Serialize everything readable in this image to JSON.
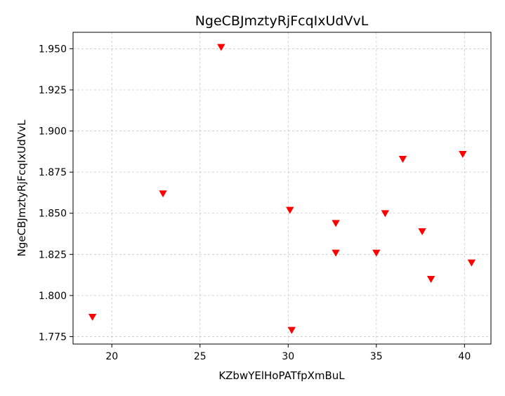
{
  "chart_data": {
    "type": "scatter",
    "title": "NgeCBJmztyRjFcqIxUdVvL",
    "xlabel": "KZbwYElHoPATfpXmBuL",
    "ylabel": "NgeCBJmztyRjFcqIxUdVvL",
    "xlim": [
      17.8,
      41.5
    ],
    "ylim": [
      1.7705,
      1.96
    ],
    "x_ticks": [
      20,
      25,
      30,
      35,
      40
    ],
    "x_tick_labels": [
      "20",
      "25",
      "30",
      "35",
      "40"
    ],
    "y_ticks": [
      1.775,
      1.8,
      1.825,
      1.85,
      1.875,
      1.9,
      1.925,
      1.95
    ],
    "y_tick_labels": [
      "1.775",
      "1.800",
      "1.825",
      "1.850",
      "1.875",
      "1.900",
      "1.925",
      "1.950"
    ],
    "grid": true,
    "marker": "triangle-down",
    "marker_color": "#ff0000",
    "points": [
      {
        "x": 18.9,
        "y": 1.787
      },
      {
        "x": 22.9,
        "y": 1.862
      },
      {
        "x": 26.2,
        "y": 1.951
      },
      {
        "x": 30.1,
        "y": 1.852
      },
      {
        "x": 30.2,
        "y": 1.779
      },
      {
        "x": 32.7,
        "y": 1.844
      },
      {
        "x": 32.7,
        "y": 1.826
      },
      {
        "x": 35.0,
        "y": 1.826
      },
      {
        "x": 35.5,
        "y": 1.85
      },
      {
        "x": 36.5,
        "y": 1.883
      },
      {
        "x": 37.6,
        "y": 1.839
      },
      {
        "x": 38.1,
        "y": 1.81
      },
      {
        "x": 39.9,
        "y": 1.886
      },
      {
        "x": 40.4,
        "y": 1.82
      }
    ]
  }
}
